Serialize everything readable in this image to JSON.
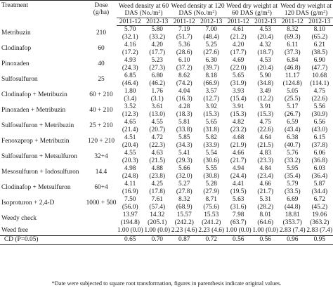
{
  "header": {
    "treatment": "Treatment",
    "dose_line1": "Dose",
    "dose_line2": "(g/ha)",
    "groups": [
      {
        "line1": "Weed density at 60",
        "line2_pre": "DAS (No./m",
        "sup": "2",
        "line2_post": ")"
      },
      {
        "line1": "Weed density at 120",
        "line2_pre": "DAS (No./m",
        "sup": "2",
        "line2_post": ")"
      },
      {
        "line1": "Weed dry weight at",
        "line2_pre": "60 DAS (g/m",
        "sup": "2",
        "line2_post": ")"
      },
      {
        "line1": "Weed dry weight at",
        "line2_pre": "120 DAS (g/m",
        "sup": "2",
        "line2_post": ")"
      }
    ],
    "years": [
      "2011-12",
      "2012-13",
      "2011-12",
      "2012-13",
      "2011-12",
      "2012-13",
      "2011-12",
      "2012-13"
    ]
  },
  "rows": [
    {
      "treatment": "Metribuzin",
      "dose": "210",
      "mean": [
        "5.70",
        "5.80",
        "7.19",
        "7.00",
        "4.61",
        "4.53",
        "8.32",
        "8.10"
      ],
      "orig": [
        "(32.1)",
        "(33.2)",
        "(51.7)",
        "(48.4)",
        "(21.2)",
        "(20.4)",
        "(69.3)",
        "(65.2)"
      ]
    },
    {
      "treatment": "Clodinafop",
      "dose": "60",
      "mean": [
        "4.16",
        "4.20",
        "5.36",
        "5.25",
        "4.20",
        "4.32",
        "6.11",
        "6.21"
      ],
      "orig": [
        "(17.2)",
        "(17.7)",
        "(28.6)",
        "(27.6)",
        "(17.7)",
        "(18.7)",
        "(37.3)",
        "(38.5)"
      ]
    },
    {
      "treatment": "Pinoxaden",
      "dose": "40",
      "mean": [
        "4.93",
        "5.23",
        "6.10",
        "6.30",
        "4.69",
        "4.53",
        "6.84",
        "6.90"
      ],
      "orig": [
        "(24.3)",
        "(27.3)",
        "(37.2)",
        "(39.7)",
        "(22.0)",
        "(20.4)",
        "(46.8)",
        "(47.7)"
      ]
    },
    {
      "treatment": "Sulfosulfuron",
      "dose": "25",
      "mean": [
        "6.85",
        "6.80",
        "8.62",
        "8.18",
        "5.65",
        "5.90",
        "11.17",
        "10.68"
      ],
      "orig": [
        "(46.4)",
        "(46.2)",
        "(74.2)",
        "(66.9)",
        "(31.9)",
        "(34.8)",
        "(124.8)",
        "(114.1)"
      ]
    },
    {
      "treatment": "Clodinafop + Metribuzin",
      "dose": "60 + 210",
      "mean": [
        "1.80",
        "1.76",
        "4.04",
        "3.57",
        "3.93",
        "3.49",
        "5.05",
        "4.75"
      ],
      "orig": [
        "(3.4)",
        "(3.1)",
        "(16.3)",
        "(12.7)",
        "(15.4)",
        "(12.2)",
        "(25.5)",
        "(22.6)"
      ]
    },
    {
      "treatment": "Pinoxaden + Metribuzin",
      "dose": "40 + 210",
      "mean": [
        "3.52",
        "3.61",
        "4.28",
        "3.92",
        "3.91",
        "3.91",
        "5.17",
        "5.56"
      ],
      "orig": [
        "(12.3)",
        "(13.0)",
        "(18.3)",
        "(15.3)",
        "(15.3)",
        "(15.3)",
        "(26.7)",
        "(30.9)"
      ]
    },
    {
      "treatment": "Sulfosulfuron + Metribuzin",
      "dose": "25 + 210",
      "mean": [
        "4.65",
        "4.55",
        "5.81",
        "5.65",
        "4.82",
        "4.75",
        "6.59",
        "6.56"
      ],
      "orig": [
        "(21.4)",
        "(20.7)",
        "(33.8)",
        "(31.8)",
        "(23.2)",
        "(22.6)",
        "(43.4)",
        "(43.0)"
      ]
    },
    {
      "treatment": "Fenoxaprop + Metribuzin",
      "dose": "120 + 210",
      "mean": [
        "4.51",
        "4.72",
        "5.85",
        "5.82",
        "4.68",
        "4.64",
        "6.38",
        "6.15"
      ],
      "orig": [
        "(20.4)",
        "(22.3)",
        "(34.3)",
        "(33.9)",
        "(21.9)",
        "(21.5)",
        "(40.7)",
        "(37.8)"
      ]
    },
    {
      "treatment": "Sulfosulfuron + Metsulfuron",
      "dose": "32+4",
      "mean": [
        "4.55",
        "4.63",
        "5.41",
        "5.54",
        "4.66",
        "4.83",
        "5.76",
        "6.06"
      ],
      "orig": [
        "(20.3)",
        "(21.5)",
        "(29.3)",
        "(30.6)",
        "(21.7)",
        "(23.3)",
        "(33.2)",
        "(36.8)"
      ]
    },
    {
      "treatment": "Mesosulfuron + Iodosulfuron",
      "dose": "14.4",
      "mean": [
        "4.98",
        "4.88",
        "5.66",
        "5.55",
        "4.94",
        "4.84",
        "5.95",
        "6.03"
      ],
      "orig": [
        "(24.8)",
        "(23.8)",
        "(32.0)",
        "(30.8)",
        "(24.4)",
        "(23.4)",
        "(35.4)",
        "(36.4)"
      ]
    },
    {
      "treatment": "Clodinafop + Metsulfuron",
      "dose": "60+4",
      "mean": [
        "4.11",
        "4.25",
        "5.27",
        "5.28",
        "4.41",
        "4.66",
        "5.79",
        "5.87"
      ],
      "orig": [
        "(16.9)",
        "(17.8)",
        "(27.8)",
        "(27.9)",
        "(19.5)",
        "(21.7)",
        "(33.5)",
        "(34.4)"
      ]
    },
    {
      "treatment": "Isoproturon + 2,4-D",
      "dose": "1000 + 500",
      "mean": [
        "7.50",
        "7.61",
        "8.32",
        "8.71",
        "5.63",
        "5.31",
        "6.69",
        "6.72"
      ],
      "orig": [
        "(56.0)",
        "(57.4)",
        "(68.9)",
        "(75.6)",
        "(31.6)",
        "(28.2)",
        "(44.8)",
        "(45.2)"
      ]
    },
    {
      "treatment": "Weedy check",
      "dose": "",
      "mean": [
        "13.97",
        "14.32",
        "15.57",
        "15.53",
        "7.98",
        "8.01",
        "18.81",
        "19.06"
      ],
      "orig": [
        "(194.8)",
        "(205.1)",
        "(242.2)",
        "(241.2)",
        "(63.7)",
        "(64.6)",
        "(353.7)",
        "(363.2)"
      ]
    },
    {
      "treatment": "Weed free",
      "dose": "",
      "mean": [
        "1.00 (0.0)",
        "1.00 (0.0)",
        "2.23 (4.6)",
        "2.23 (4.6)",
        "1.00 (0.0)",
        "1.00 (0.0)",
        "2.83 (7.4)",
        "2.83 (7.4)"
      ],
      "orig": null
    }
  ],
  "cd": {
    "label": "CD (P=0.05)",
    "values": [
      "0.65",
      "0.70",
      "0.87",
      "0.72",
      "0.56",
      "0.56",
      "0.96",
      "0.95"
    ]
  },
  "footnote": "*Date were subjected to square root transformation, figures in parenthesis indicate original values."
}
